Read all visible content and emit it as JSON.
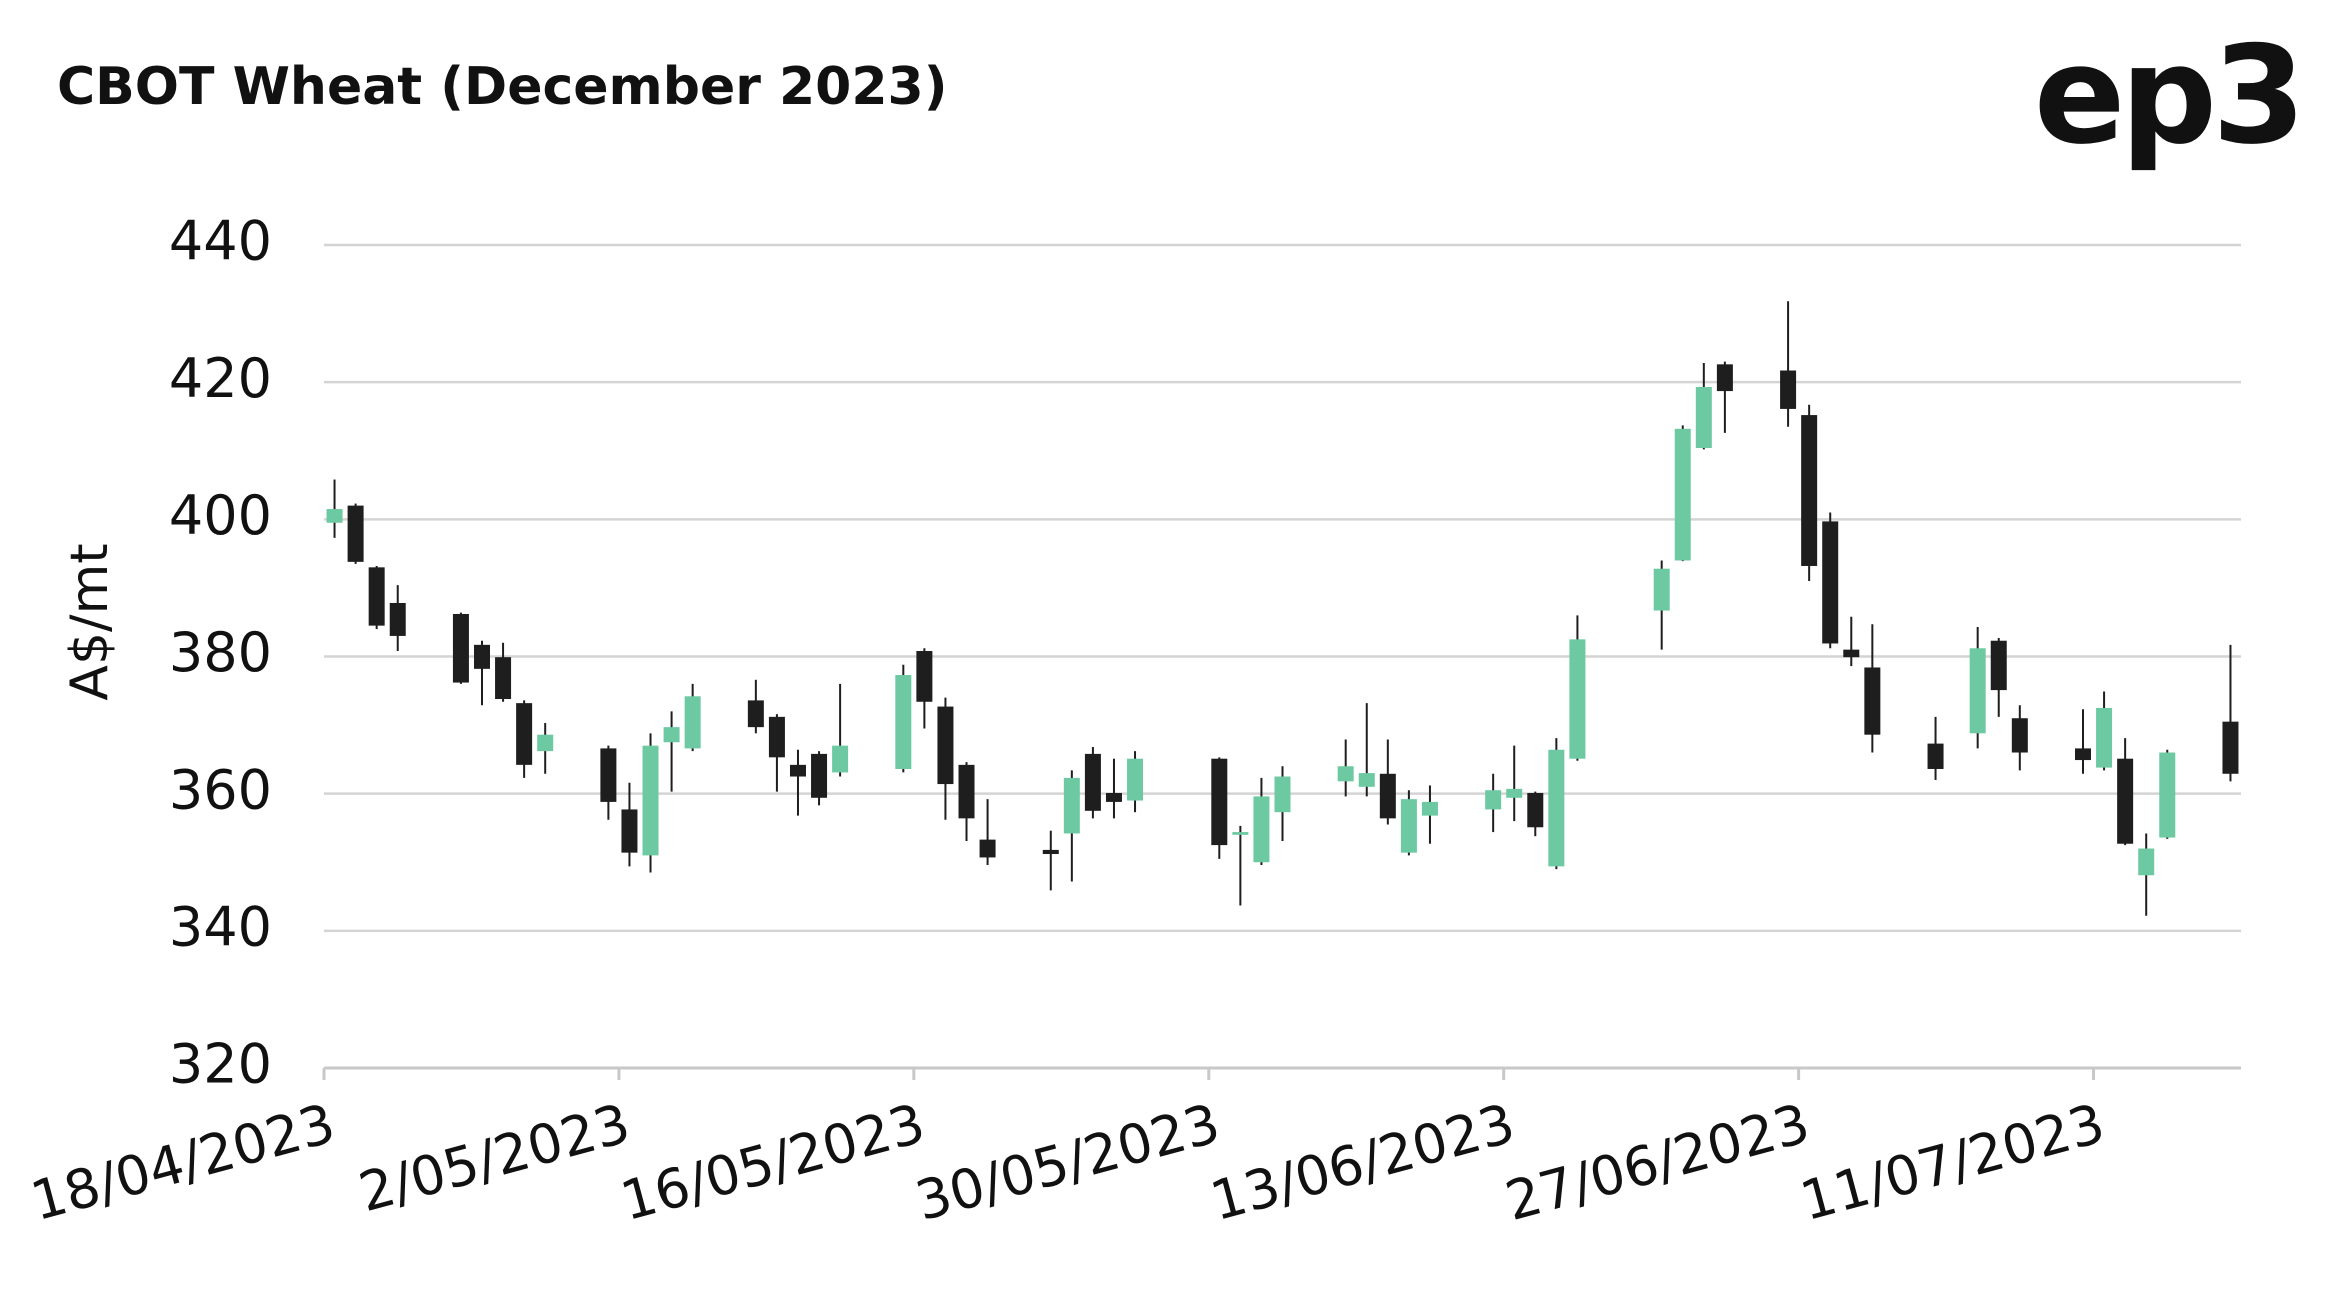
{
  "chart_data": {
    "type": "candlestick",
    "title": "CBOT Wheat (December 2023)",
    "logo": "ep3",
    "ylabel": "A$/mt",
    "x": [
      "18/04/2023",
      "19/04/2023",
      "20/04/2023",
      "21/04/2023",
      "24/04/2023",
      "25/04/2023",
      "26/04/2023",
      "27/04/2023",
      "28/04/2023",
      "1/05/2023",
      "2/05/2023",
      "3/05/2023",
      "4/05/2023",
      "5/05/2023",
      "8/05/2023",
      "9/05/2023",
      "10/05/2023",
      "11/05/2023",
      "12/05/2023",
      "15/05/2023",
      "16/05/2023",
      "17/05/2023",
      "18/05/2023",
      "19/05/2023",
      "22/05/2023",
      "23/05/2023",
      "24/05/2023",
      "25/05/2023",
      "26/05/2023",
      "30/05/2023",
      "31/05/2023",
      "1/06/2023",
      "2/06/2023",
      "5/06/2023",
      "6/06/2023",
      "7/06/2023",
      "8/06/2023",
      "9/06/2023",
      "12/06/2023",
      "13/06/2023",
      "14/06/2023",
      "15/06/2023",
      "16/06/2023",
      "20/06/2023",
      "21/06/2023",
      "22/06/2023",
      "23/06/2023",
      "26/06/2023",
      "27/06/2023",
      "28/06/2023",
      "29/06/2023",
      "30/06/2023",
      "3/07/2023",
      "5/07/2023",
      "6/07/2023",
      "7/07/2023",
      "10/07/2023",
      "11/07/2023",
      "12/07/2023",
      "13/07/2023",
      "14/07/2023",
      "17/07/2023"
    ],
    "open": [
      399.5,
      402.0,
      393.0,
      387.8,
      386.2,
      381.7,
      379.9,
      373.2,
      366.2,
      366.6,
      357.7,
      351.0,
      367.5,
      366.6,
      373.6,
      371.2,
      364.2,
      365.8,
      363.1,
      363.6,
      380.8,
      372.7,
      364.2,
      353.3,
      351.8,
      354.2,
      365.8,
      360.1,
      359.0,
      365.1,
      354.0,
      350.0,
      357.3,
      361.8,
      361.0,
      362.9,
      351.4,
      356.8,
      357.7,
      359.4,
      360.1,
      349.4,
      365.1,
      386.7,
      394.0,
      410.4,
      422.6,
      421.7,
      415.2,
      399.7,
      381.0,
      378.4,
      367.3,
      368.8,
      382.3,
      371.0,
      366.6,
      363.8,
      365.1,
      348.1,
      353.6,
      370.5
    ],
    "high": [
      405.8,
      402.3,
      393.2,
      390.4,
      386.4,
      382.3,
      382.0,
      373.6,
      370.3,
      367.0,
      361.6,
      368.8,
      372.0,
      376.0,
      376.6,
      371.6,
      366.4,
      366.2,
      376.0,
      378.8,
      381.2,
      374.0,
      364.6,
      359.2,
      354.6,
      363.4,
      366.8,
      365.1,
      366.2,
      365.3,
      355.3,
      362.3,
      364.0,
      367.9,
      373.2,
      367.9,
      360.5,
      361.2,
      362.9,
      367.0,
      360.3,
      368.1,
      386.0,
      394.0,
      413.7,
      422.8,
      423.0,
      431.8,
      416.7,
      401.0,
      385.8,
      384.7,
      371.2,
      384.3,
      382.7,
      372.9,
      372.3,
      374.9,
      368.1,
      354.2,
      366.4,
      381.7
    ],
    "low": [
      397.3,
      393.5,
      384.0,
      380.8,
      376.0,
      372.9,
      373.4,
      362.3,
      362.9,
      356.2,
      349.4,
      348.5,
      360.3,
      366.2,
      368.8,
      360.3,
      356.8,
      358.3,
      362.5,
      363.1,
      369.5,
      356.2,
      353.1,
      349.6,
      345.9,
      347.2,
      356.4,
      356.4,
      357.3,
      350.5,
      343.7,
      349.6,
      353.1,
      359.6,
      359.6,
      355.5,
      351.0,
      352.7,
      354.4,
      356.0,
      353.8,
      349.0,
      364.8,
      381.0,
      393.9,
      410.2,
      412.6,
      413.5,
      391.0,
      381.2,
      378.6,
      366.0,
      362.0,
      366.6,
      371.2,
      363.4,
      362.9,
      363.4,
      352.5,
      342.2,
      353.4,
      361.8
    ],
    "close": [
      401.5,
      393.8,
      384.5,
      383.0,
      376.2,
      378.2,
      373.8,
      364.2,
      368.6,
      358.8,
      351.4,
      367.0,
      369.7,
      374.2,
      369.7,
      365.3,
      362.5,
      359.4,
      367.0,
      377.3,
      373.4,
      361.4,
      356.4,
      350.7,
      351.2,
      362.3,
      357.5,
      358.8,
      365.1,
      352.5,
      354.4,
      359.6,
      362.5,
      364.0,
      363.0,
      356.4,
      359.2,
      358.8,
      360.5,
      360.7,
      355.1,
      366.4,
      382.5,
      392.8,
      413.2,
      419.3,
      418.7,
      416.1,
      393.2,
      381.9,
      379.9,
      368.6,
      363.6,
      381.2,
      375.1,
      366.0,
      364.9,
      372.5,
      352.7,
      352.0,
      366.0,
      362.9
    ],
    "up_color": "#6cc9a1",
    "down_color": "#1e1e1e",
    "xlim": [
      "18/04/2023",
      "18/07/2023"
    ],
    "xticks": [
      "18/04/2023",
      "2/05/2023",
      "16/05/2023",
      "30/05/2023",
      "13/06/2023",
      "27/06/2023",
      "11/07/2023"
    ],
    "ylim": [
      320,
      440
    ],
    "yticks": [
      320,
      340,
      360,
      380,
      400,
      420,
      440
    ],
    "grid": true
  }
}
